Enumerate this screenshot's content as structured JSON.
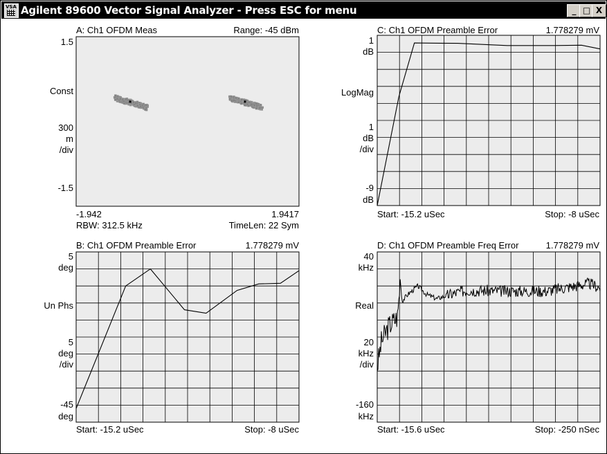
{
  "window": {
    "title": "Agilent 89600 Vector Signal Analyzer - Press ESC for menu",
    "icon_text": "VSA",
    "minimize_glyph": "_",
    "maximize_glyph": "□",
    "close_glyph": "X"
  },
  "traces": {
    "a": {
      "title": "A: Ch1 OFDM Meas",
      "range": "Range: -45 dBm",
      "y_top": "1.5",
      "y_format": "Const",
      "y_scale_1": "300",
      "y_scale_2": "m",
      "y_scale_3": "/div",
      "y_bottom": "-1.5",
      "x_left": "-1.942",
      "x_right": "1.9417",
      "rbw": "RBW: 312.5 kHz",
      "timelen": "TimeLen: 22 Sym"
    },
    "b": {
      "title": "B: Ch1 OFDM Preamble Error",
      "marker": "1.778279 mV",
      "y_top_1": "5",
      "y_top_2": "deg",
      "y_format": "Un Phs",
      "y_scale_1": "5",
      "y_scale_2": "deg",
      "y_scale_3": "/div",
      "y_bottom_1": "-45",
      "y_bottom_2": "deg",
      "start": "Start: -15.2 uSec",
      "stop": "Stop: -8 uSec"
    },
    "c": {
      "title": "C: Ch1 OFDM Preamble Error",
      "marker": "1.778279 mV",
      "y_top_1": "1",
      "y_top_2": "dB",
      "y_format": "LogMag",
      "y_scale_1": "1",
      "y_scale_2": "dB",
      "y_scale_3": "/div",
      "y_bottom_1": "-9",
      "y_bottom_2": "dB",
      "start": "Start: -15.2 uSec",
      "stop": "Stop: -8 uSec"
    },
    "d": {
      "title": "D: Ch1 OFDM Preamble Freq Error",
      "marker": "1.778279 mV",
      "y_top_1": "40",
      "y_top_2": "kHz",
      "y_format": "Real",
      "y_scale_1": "20",
      "y_scale_2": "kHz",
      "y_scale_3": "/div",
      "y_bottom_1": "-160",
      "y_bottom_2": "kHz",
      "start": "Start: -15.6 uSec",
      "stop": "Stop: -250 nSec"
    }
  },
  "chart_data": [
    {
      "type": "scatter",
      "name": "A: Ch1 OFDM Meas",
      "xlim": [
        -1.942,
        1.9417
      ],
      "ylim": [
        -1.5,
        1.5
      ],
      "grid": false,
      "clusters": [
        {
          "center": [
            -1.0,
            0.35
          ],
          "spread_x": 0.28,
          "tilt": -0.3
        },
        {
          "center": [
            1.0,
            0.35
          ],
          "spread_x": 0.28,
          "tilt": -0.3
        }
      ],
      "colors": {
        "points": "#808080",
        "center": "#000000",
        "background": "#ececec"
      }
    },
    {
      "type": "line",
      "name": "B: Ch1 OFDM Preamble Error",
      "xlim": [
        -15.2,
        -8
      ],
      "ylim": [
        -45,
        5
      ],
      "grid": true,
      "x": [
        -15.2,
        -13.6,
        -12.8,
        -11.7,
        -11.0,
        -10.0,
        -9.3,
        -8.6,
        -8
      ],
      "y": [
        -41,
        -5,
        0,
        -12,
        -13,
        -6.3,
        -4.4,
        -4.2,
        -0.5
      ]
    },
    {
      "type": "line",
      "name": "C: Ch1 OFDM Preamble Error",
      "xlim": [
        -15.2,
        -8
      ],
      "ylim": [
        -9,
        1
      ],
      "grid": true,
      "x": [
        -15.2,
        -14.5,
        -14.0,
        -12.6,
        -11.0,
        -9.5,
        -8.6,
        -8
      ],
      "y": [
        -9,
        -2.6,
        0.55,
        0.53,
        0.4,
        0.4,
        0.42,
        0.2
      ]
    },
    {
      "type": "line",
      "name": "D: Ch1 OFDM Preamble Freq Error",
      "xlim": [
        -15.6,
        -0.25
      ],
      "ylim": [
        -160,
        40
      ],
      "grid": true,
      "x": [
        -15.6,
        -15.3,
        -14.8,
        -14.2,
        -14.0,
        -13.9,
        -13.5,
        -12.8,
        -12.2,
        -11.5,
        -10.8,
        -9.5,
        -7,
        -4,
        -1,
        -0.25
      ],
      "y": [
        -95,
        -65,
        -47,
        -36,
        10,
        -18,
        -10,
        0,
        -10,
        -15,
        -11,
        -5,
        -6,
        -6,
        3,
        -2
      ]
    }
  ]
}
